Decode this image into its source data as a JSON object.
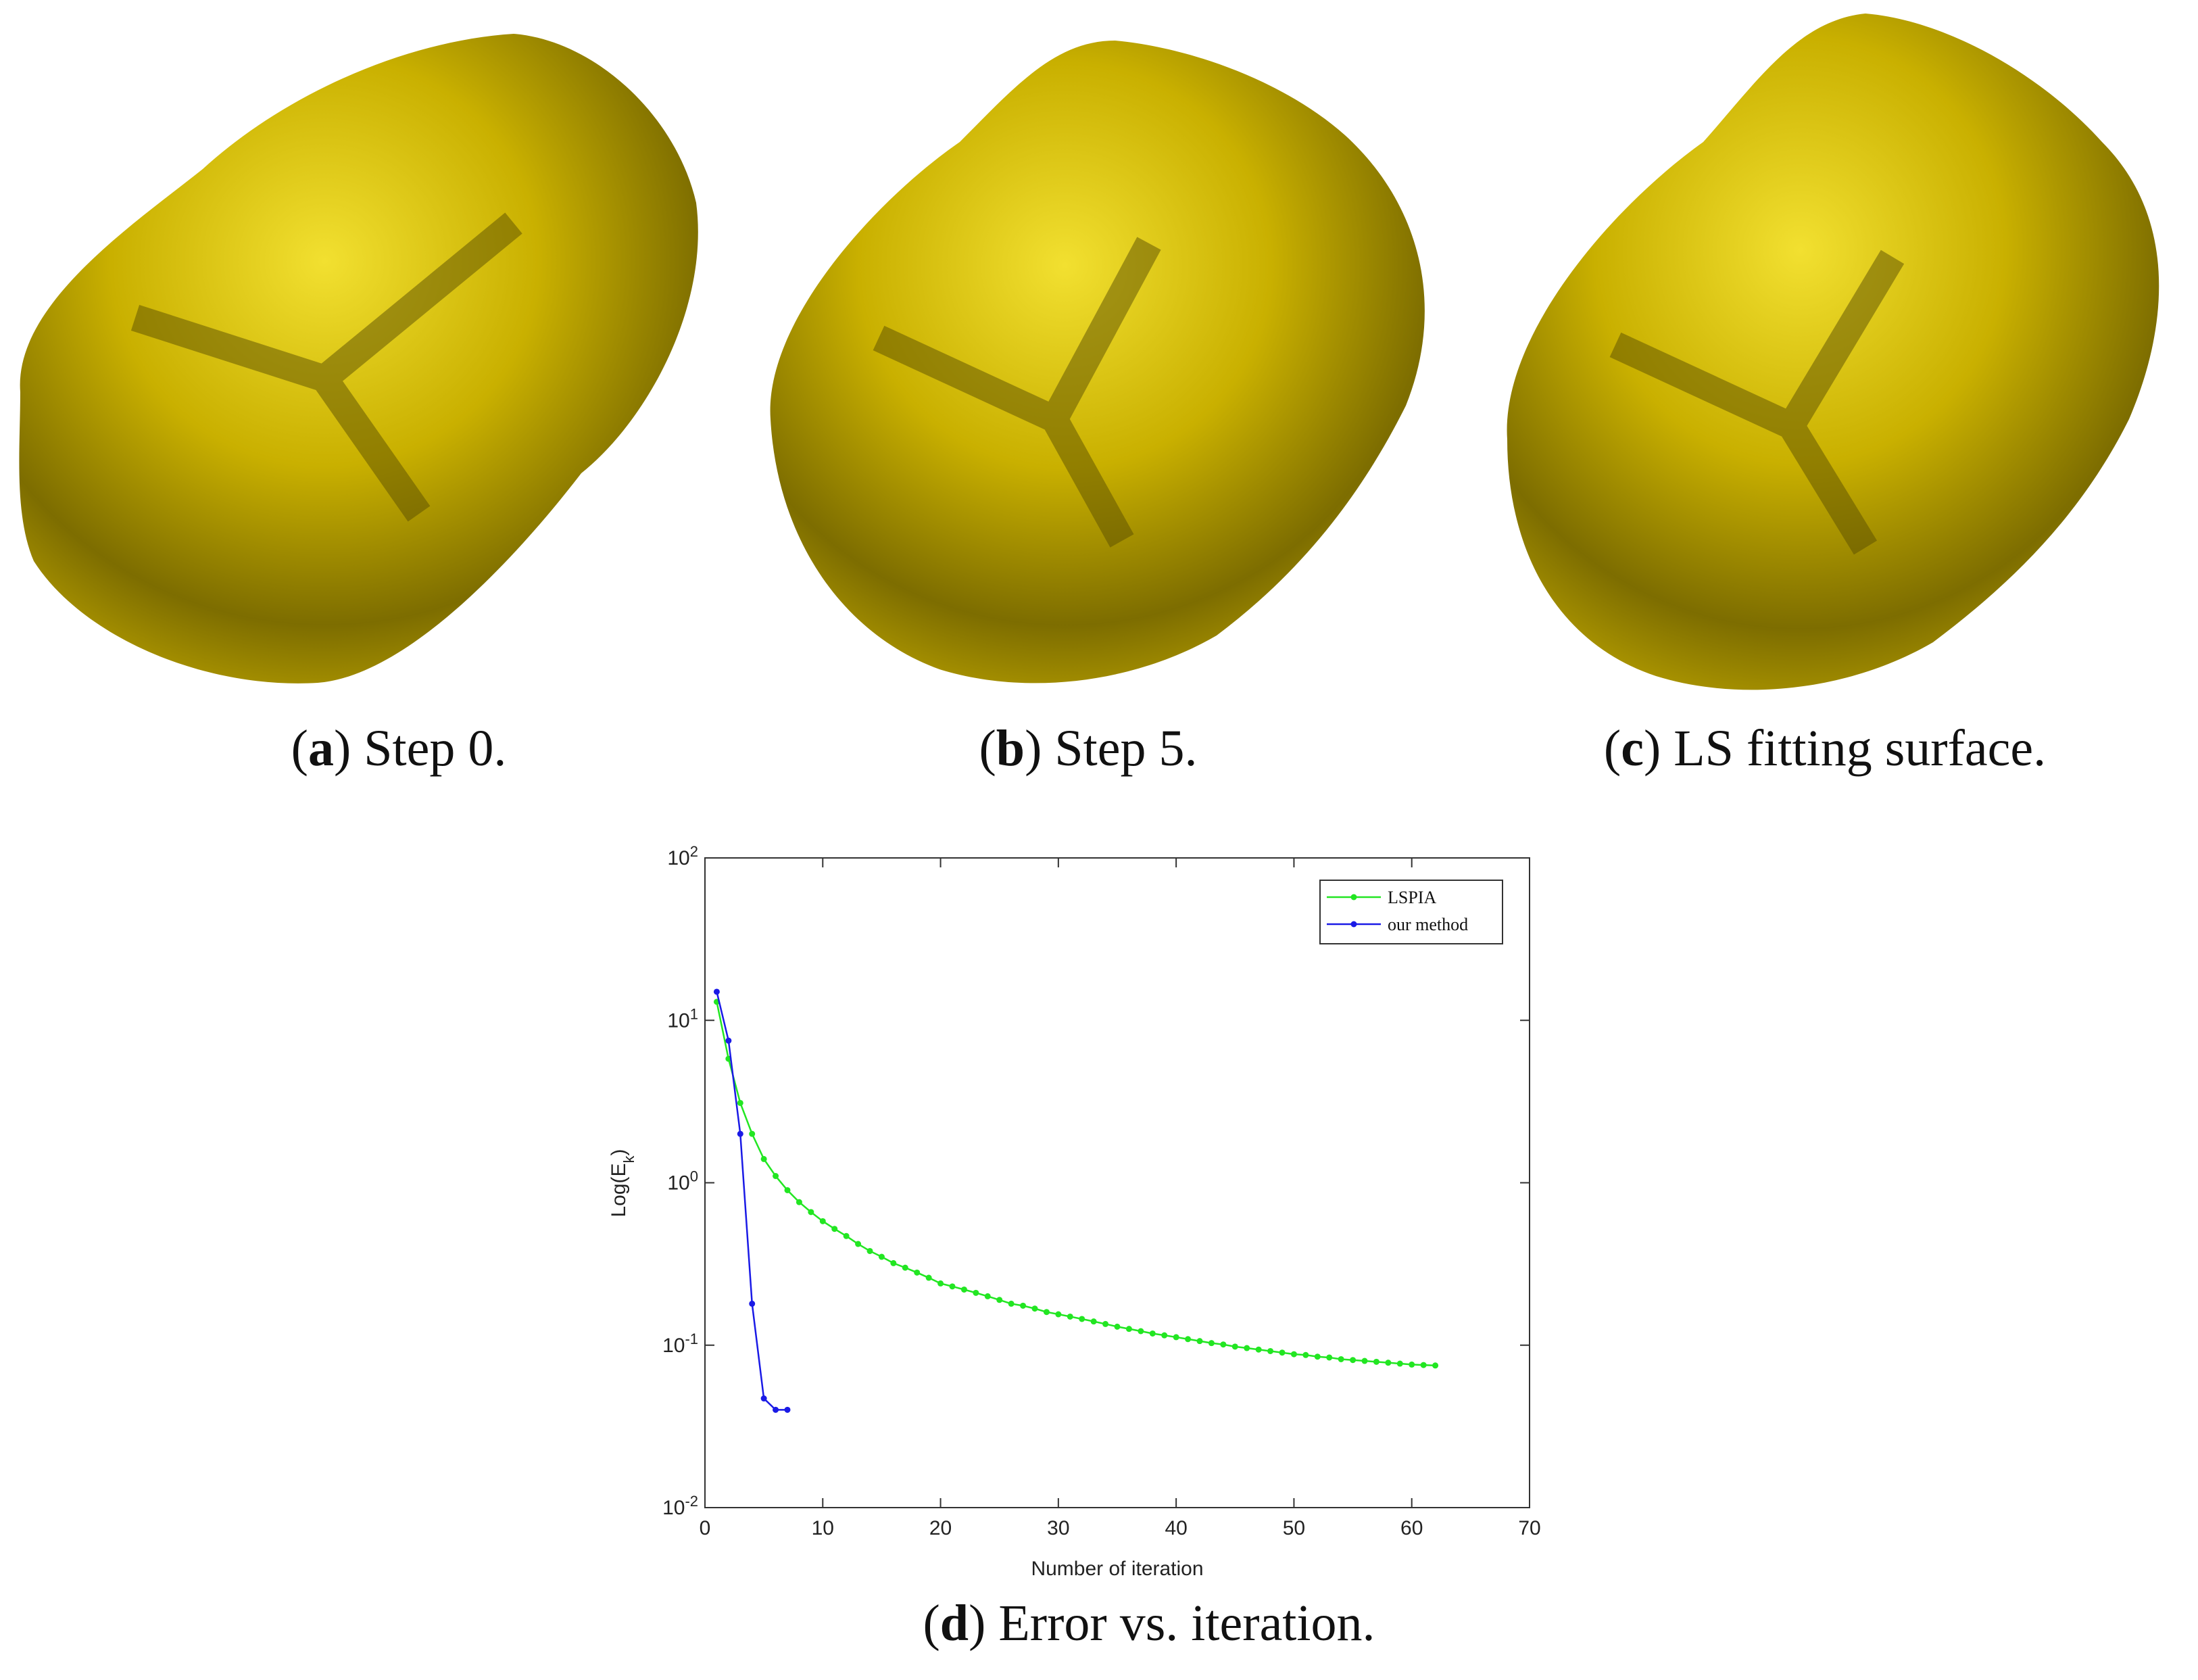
{
  "captions": [
    [
      "(",
      "a",
      ") Step 0."
    ],
    [
      "(",
      "b",
      ") Step 5."
    ],
    [
      "(",
      "c",
      ") LS fitting surface."
    ],
    [
      "(",
      "d",
      ") Error vs. iteration."
    ]
  ],
  "chart_data": {
    "type": "line",
    "xlabel": "Number of iteration",
    "ylabel": [
      "Log(E",
      "k",
      ")"
    ],
    "xlim": [
      0,
      70
    ],
    "xticks": [
      0,
      10,
      20,
      30,
      40,
      50,
      60,
      70
    ],
    "ylim": [
      0.01,
      100
    ],
    "log_y": true,
    "yticks": [
      {
        "value": 0.01,
        "label": "10",
        "sup": "-2"
      },
      {
        "value": 0.1,
        "label": "10",
        "sup": "-1"
      },
      {
        "value": 1,
        "label": "10",
        "sup": "0"
      },
      {
        "value": 10,
        "label": "10",
        "sup": "1"
      },
      {
        "value": 100,
        "label": "10",
        "sup": "2"
      }
    ],
    "legend": "upper right",
    "series": [
      {
        "name": "LSPIA",
        "color": "#22e622",
        "x": [
          1,
          2,
          3,
          4,
          5,
          6,
          7,
          8,
          9,
          10,
          11,
          12,
          13,
          14,
          15,
          16,
          17,
          18,
          19,
          20,
          21,
          22,
          23,
          24,
          25,
          26,
          27,
          28,
          29,
          30,
          31,
          32,
          33,
          34,
          35,
          36,
          37,
          38,
          39,
          40,
          41,
          42,
          43,
          44,
          45,
          46,
          47,
          48,
          49,
          50,
          51,
          52,
          53,
          54,
          55,
          56,
          57,
          58,
          59,
          60,
          61,
          62
        ],
        "values": [
          13,
          5.8,
          3.1,
          2.0,
          1.4,
          1.1,
          0.9,
          0.76,
          0.66,
          0.58,
          0.52,
          0.47,
          0.42,
          0.38,
          0.35,
          0.32,
          0.3,
          0.28,
          0.26,
          0.24,
          0.23,
          0.22,
          0.21,
          0.2,
          0.19,
          0.18,
          0.175,
          0.168,
          0.16,
          0.155,
          0.15,
          0.145,
          0.14,
          0.135,
          0.13,
          0.126,
          0.122,
          0.118,
          0.115,
          0.112,
          0.109,
          0.106,
          0.103,
          0.101,
          0.098,
          0.096,
          0.094,
          0.092,
          0.09,
          0.088,
          0.087,
          0.085,
          0.084,
          0.082,
          0.081,
          0.08,
          0.079,
          0.078,
          0.077,
          0.076,
          0.0755,
          0.075
        ]
      },
      {
        "name": "our method",
        "color": "#1a1ae6",
        "x": [
          1,
          2,
          3,
          4,
          5,
          6,
          7
        ],
        "values": [
          15,
          7.5,
          2.0,
          0.18,
          0.047,
          0.04,
          0.04
        ]
      }
    ]
  }
}
